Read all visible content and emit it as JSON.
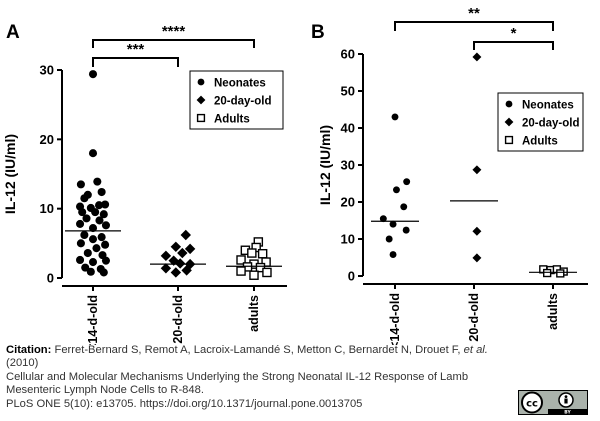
{
  "chart_data": [
    {
      "panel": "A",
      "type": "scatter",
      "ylabel": "IL-12 (IU/ml)",
      "ylim": [
        0,
        30
      ],
      "yticks": [
        "0",
        "10",
        "20",
        "30"
      ],
      "categories": [
        "<14-d-old",
        "20-d-old",
        "adults"
      ],
      "legend": {
        "position": "top-right",
        "entries": [
          {
            "label": "Neonates",
            "marker": "circle"
          },
          {
            "label": "20-day-old",
            "marker": "diamond"
          },
          {
            "label": "Adults",
            "marker": "open-square"
          }
        ]
      },
      "series": [
        {
          "category": "<14-d-old",
          "marker": "circle",
          "median": 6.8,
          "points": [
            {
              "x": 0,
              "y": 29.4
            },
            {
              "x": 0,
              "y": 18.0
            },
            {
              "x": -0.28,
              "y": 13.5
            },
            {
              "x": 0.1,
              "y": 13.9
            },
            {
              "x": -0.12,
              "y": 12.0
            },
            {
              "x": 0.2,
              "y": 12.4
            },
            {
              "x": -0.2,
              "y": 11.5
            },
            {
              "x": 0.28,
              "y": 10.6
            },
            {
              "x": -0.3,
              "y": 10.3
            },
            {
              "x": -0.05,
              "y": 10.1
            },
            {
              "x": 0.14,
              "y": 10.5
            },
            {
              "x": -0.25,
              "y": 9.5
            },
            {
              "x": 0.05,
              "y": 9.5
            },
            {
              "x": 0.25,
              "y": 9.2
            },
            {
              "x": -0.15,
              "y": 8.6
            },
            {
              "x": 0.15,
              "y": 8.3
            },
            {
              "x": -0.3,
              "y": 7.8
            },
            {
              "x": 0.3,
              "y": 7.6
            },
            {
              "x": 0.0,
              "y": 7.2
            },
            {
              "x": -0.2,
              "y": 6.2
            },
            {
              "x": 0.2,
              "y": 5.9
            },
            {
              "x": 0.0,
              "y": 5.6
            },
            {
              "x": -0.28,
              "y": 5.0
            },
            {
              "x": 0.28,
              "y": 4.8
            },
            {
              "x": 0.08,
              "y": 4.3
            },
            {
              "x": -0.12,
              "y": 3.6
            },
            {
              "x": 0.22,
              "y": 3.3
            },
            {
              "x": -0.3,
              "y": 2.6
            },
            {
              "x": 0.0,
              "y": 2.3
            },
            {
              "x": 0.3,
              "y": 2.5
            },
            {
              "x": -0.18,
              "y": 1.5
            },
            {
              "x": 0.18,
              "y": 1.3
            },
            {
              "x": -0.05,
              "y": 0.9
            },
            {
              "x": 0.25,
              "y": 0.8
            }
          ]
        },
        {
          "category": "20-d-old",
          "marker": "diamond",
          "median": 2.0,
          "points": [
            {
              "x": 0.18,
              "y": 6.2
            },
            {
              "x": -0.05,
              "y": 4.5
            },
            {
              "x": 0.28,
              "y": 4.2
            },
            {
              "x": 0.1,
              "y": 3.6
            },
            {
              "x": -0.28,
              "y": 3.2
            },
            {
              "x": -0.1,
              "y": 2.5
            },
            {
              "x": 0.05,
              "y": 2.1
            },
            {
              "x": 0.28,
              "y": 2.0
            },
            {
              "x": -0.28,
              "y": 1.4
            },
            {
              "x": 0.2,
              "y": 1.1
            },
            {
              "x": -0.05,
              "y": 0.8
            }
          ]
        },
        {
          "category": "adults",
          "marker": "open-square",
          "median": 1.7,
          "points": [
            {
              "x": 0.1,
              "y": 5.2
            },
            {
              "x": 0.05,
              "y": 4.4
            },
            {
              "x": -0.2,
              "y": 4.0
            },
            {
              "x": -0.05,
              "y": 3.6
            },
            {
              "x": 0.2,
              "y": 3.5
            },
            {
              "x": -0.3,
              "y": 2.6
            },
            {
              "x": 0.28,
              "y": 2.3
            },
            {
              "x": 0.0,
              "y": 2.0
            },
            {
              "x": -0.15,
              "y": 1.6
            },
            {
              "x": 0.15,
              "y": 1.5
            },
            {
              "x": -0.3,
              "y": 1.0
            },
            {
              "x": 0.3,
              "y": 0.8
            },
            {
              "x": 0.0,
              "y": 0.4
            }
          ]
        }
      ],
      "significance": [
        {
          "from": 0,
          "to": 1,
          "label": "***"
        },
        {
          "from": 0,
          "to": 2,
          "label": "****"
        }
      ]
    },
    {
      "panel": "B",
      "type": "scatter",
      "ylabel": "IL-12 (IU/ml)",
      "ylim": [
        0,
        60
      ],
      "yticks": [
        "0",
        "10",
        "20",
        "30",
        "40",
        "50",
        "60"
      ],
      "categories": [
        "<14-d-old",
        "20-d-old",
        "adults"
      ],
      "legend": {
        "position": "top-right",
        "entries": [
          {
            "label": "Neonates",
            "marker": "circle"
          },
          {
            "label": "20-day-old",
            "marker": "diamond"
          },
          {
            "label": "Adults",
            "marker": "open-square"
          }
        ]
      },
      "series": [
        {
          "category": "<14-d-old",
          "marker": "circle",
          "median": 14.8,
          "points": [
            {
              "x": 0.0,
              "y": 43.0
            },
            {
              "x": 0.24,
              "y": 25.5
            },
            {
              "x": 0.03,
              "y": 23.3
            },
            {
              "x": 0.18,
              "y": 18.7
            },
            {
              "x": -0.24,
              "y": 15.5
            },
            {
              "x": -0.04,
              "y": 14.0
            },
            {
              "x": 0.23,
              "y": 12.4
            },
            {
              "x": -0.12,
              "y": 10.0
            },
            {
              "x": -0.04,
              "y": 5.8
            }
          ]
        },
        {
          "category": "20-d-old",
          "marker": "diamond",
          "median": 20.3,
          "points": [
            {
              "x": 0.06,
              "y": 59.2
            },
            {
              "x": 0.06,
              "y": 28.7
            },
            {
              "x": 0.06,
              "y": 12.1
            },
            {
              "x": 0.06,
              "y": 4.9
            }
          ]
        },
        {
          "category": "adults",
          "marker": "open-square",
          "median": 1.0,
          "points": [
            {
              "x": -0.2,
              "y": 1.8
            },
            {
              "x": -0.05,
              "y": 1.6
            },
            {
              "x": 0.08,
              "y": 1.8
            },
            {
              "x": 0.22,
              "y": 1.2
            },
            {
              "x": -0.12,
              "y": 0.8
            },
            {
              "x": 0.15,
              "y": 0.7
            }
          ]
        }
      ],
      "significance": [
        {
          "from": 0,
          "to": 2,
          "label": "**"
        },
        {
          "from": 1,
          "to": 2,
          "label": "*"
        }
      ]
    }
  ],
  "caption": {
    "label": "Citation:",
    "authors": "Ferret-Bernard S, Remot A, Lacroix-Lamandé S, Metton C, Bernardet N, Drouet F,",
    "et_al": "et al.",
    "year": "(2010)",
    "title": "Cellular and Molecular Mechanisms Underlying the Strong Neonatal IL-12 Response of Lamb Mesenteric Lymph Node Cells to R-848.",
    "journal": "PLoS ONE 5(10): e13705. https://doi.org/10.1371/journal.pone.0013705"
  },
  "license_badge": {
    "cc": "cc",
    "by": "BY"
  }
}
